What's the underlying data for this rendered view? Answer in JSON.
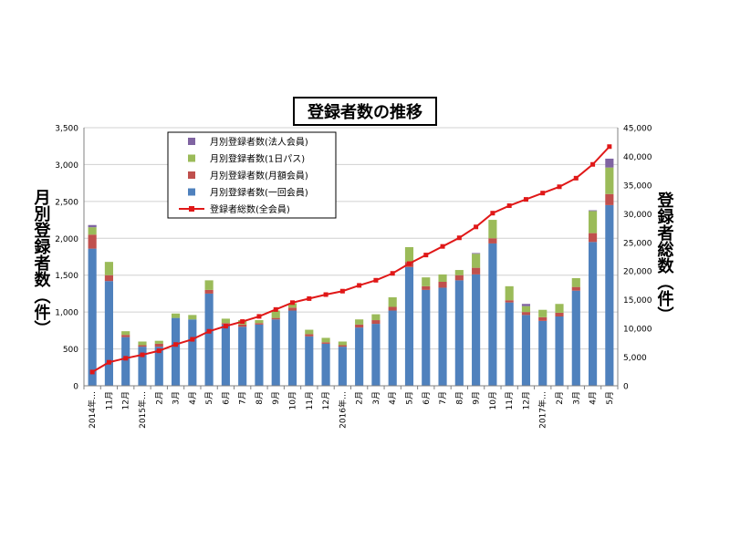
{
  "chart_data": {
    "type": "bar",
    "title": "登録者数の推移",
    "ylabel": "月別登録者数（件）",
    "y2label": "登録者総数（件）",
    "ylim": [
      0,
      3500
    ],
    "y2lim": [
      0,
      45000
    ],
    "yticks": [
      "0",
      "500",
      "1,000",
      "1,500",
      "2,000",
      "2,500",
      "3,000",
      "3,500"
    ],
    "y2ticks": [
      "0",
      "5,000",
      "10,000",
      "15,000",
      "20,000",
      "25,000",
      "30,000",
      "35,000",
      "40,000",
      "45,000"
    ],
    "grid": true,
    "legend_position": "top-left",
    "categories": [
      "2014年…",
      "11月",
      "12月",
      "2015年…",
      "2月",
      "3月",
      "4月",
      "5月",
      "6月",
      "7月",
      "8月",
      "9月",
      "10月",
      "11月",
      "12月",
      "2016年…",
      "2月",
      "3月",
      "4月",
      "5月",
      "6月",
      "7月",
      "8月",
      "9月",
      "10月",
      "11月",
      "12月",
      "2017年…",
      "2月",
      "3月",
      "4月",
      "5月"
    ],
    "series": [
      {
        "name": "月別登録者数(法人会員)",
        "color": "#8064a2",
        "values": [
          30,
          0,
          0,
          0,
          0,
          0,
          0,
          0,
          0,
          0,
          0,
          0,
          0,
          0,
          0,
          0,
          0,
          0,
          0,
          0,
          0,
          0,
          0,
          10,
          0,
          0,
          30,
          0,
          0,
          0,
          10,
          120
        ]
      },
      {
        "name": "月別登録者数(1日パス)",
        "color": "#9bbb59",
        "values": [
          100,
          180,
          50,
          50,
          40,
          60,
          60,
          130,
          60,
          60,
          40,
          100,
          60,
          60,
          60,
          50,
          70,
          80,
          130,
          200,
          120,
          100,
          70,
          190,
          250,
          190,
          80,
          100,
          120,
          120,
          300,
          360
        ]
      },
      {
        "name": "月別登録者数(月額会員)",
        "color": "#c0504d",
        "values": [
          190,
          80,
          30,
          20,
          40,
          0,
          0,
          50,
          20,
          30,
          20,
          20,
          40,
          30,
          20,
          20,
          40,
          50,
          50,
          70,
          50,
          80,
          70,
          90,
          70,
          30,
          40,
          50,
          50,
          50,
          120,
          150
        ]
      },
      {
        "name": "月別登録者数(一回会員)",
        "color": "#4f81bd",
        "values": [
          1860,
          1420,
          660,
          530,
          530,
          920,
          900,
          1250,
          830,
          800,
          830,
          900,
          1020,
          670,
          570,
          530,
          790,
          840,
          1020,
          1610,
          1300,
          1330,
          1430,
          1510,
          1930,
          1130,
          960,
          880,
          940,
          1290,
          1950,
          2450
        ]
      }
    ],
    "line": {
      "name": "登録者総数(全会員)",
      "color": "#e01818",
      "axis": "right",
      "values": [
        2400,
        4100,
        4800,
        5400,
        6100,
        7200,
        8100,
        9500,
        10400,
        11200,
        12100,
        13300,
        14500,
        15200,
        15900,
        16500,
        17500,
        18400,
        19600,
        21300,
        22800,
        24300,
        25800,
        27700,
        30100,
        31400,
        32500,
        33600,
        34700,
        36200,
        38600,
        41700
      ]
    },
    "legend_order": [
      0,
      1,
      2,
      3,
      4
    ]
  }
}
